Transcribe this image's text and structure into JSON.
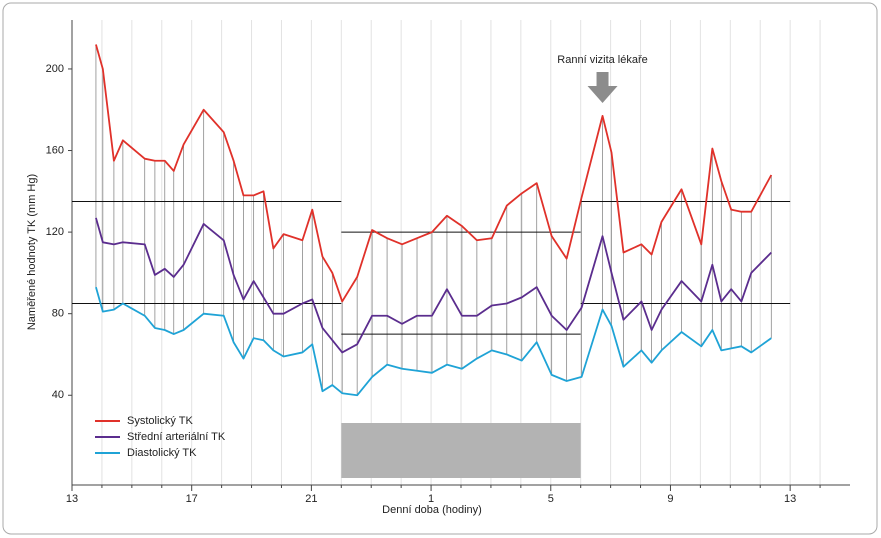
{
  "chart_data": {
    "type": "line",
    "xlabel": "Denní doba (hodiny)",
    "ylabel": "Naměřené hodnoty TK (mm Hg)",
    "x": [
      13.8,
      14.03,
      14.4,
      14.7,
      15.43,
      15.77,
      16.1,
      16.4,
      16.73,
      17.4,
      18.07,
      18.4,
      18.73,
      19.07,
      19.4,
      19.73,
      20.07,
      20.7,
      21.03,
      21.37,
      21.7,
      22.03,
      22.53,
      23.03,
      23.53,
      24.03,
      24.53,
      25.03,
      25.53,
      26.03,
      26.53,
      27.03,
      27.53,
      28.03,
      28.53,
      29.03,
      29.53,
      30.03,
      30.73,
      31.03,
      31.43,
      32.03,
      32.37,
      32.7,
      33.37,
      34.03,
      34.4,
      34.7,
      35.03,
      35.37,
      35.7,
      36.37
    ],
    "series": [
      {
        "name": "Systolický TK",
        "color": "#e0312a",
        "values": [
          212,
          200,
          155,
          165,
          156,
          155,
          155,
          150,
          163,
          180,
          169,
          155,
          138,
          138,
          140,
          112,
          119,
          116,
          131,
          108,
          100,
          86,
          98,
          121,
          117,
          114,
          117,
          120,
          128,
          123,
          116,
          117,
          133,
          139,
          144,
          118,
          107,
          137,
          177,
          159,
          110,
          114,
          109,
          125,
          141,
          114,
          161,
          145,
          131,
          130,
          130,
          148
        ]
      },
      {
        "name": "Střední arteriální TK",
        "color": "#5b2d8e",
        "values": [
          127,
          115,
          114,
          115,
          114,
          99,
          102,
          98,
          104,
          124,
          116,
          99,
          87,
          96,
          88,
          80,
          80,
          85,
          87,
          73,
          67,
          61,
          65,
          79,
          79,
          75,
          79,
          79,
          92,
          79,
          79,
          84,
          85,
          88,
          93,
          79,
          72,
          83,
          118,
          100,
          77,
          86,
          72,
          82,
          96,
          86,
          104,
          86,
          92,
          86,
          100,
          110
        ]
      },
      {
        "name": "Diastolický TK",
        "color": "#1fa3d6",
        "values": [
          93,
          81,
          82,
          85,
          79,
          73,
          72,
          70,
          72,
          80,
          79,
          66,
          58,
          68,
          67,
          62,
          59,
          61,
          65,
          42,
          45,
          41,
          40,
          49,
          55,
          53,
          52,
          51,
          55,
          53,
          58,
          62,
          60,
          57,
          66,
          50,
          47,
          49,
          82,
          74,
          54,
          62,
          56,
          62,
          71,
          64,
          72,
          62,
          63,
          64,
          61,
          68
        ]
      }
    ],
    "xlim": [
      13,
      39
    ],
    "xticks": [
      13,
      17,
      21,
      {
        "value": 25,
        "label": "1"
      },
      {
        "value": 29,
        "label": "5"
      },
      {
        "value": 33,
        "label": "9"
      },
      {
        "value": 37,
        "label": "13"
      }
    ],
    "xminorticks": [
      14,
      15,
      16,
      18,
      19,
      20,
      22,
      23,
      24,
      26,
      27,
      28,
      30,
      31,
      32,
      34,
      35,
      36,
      38
    ],
    "ylim": [
      -4,
      224
    ],
    "yticks": [
      40,
      80,
      120,
      160,
      200
    ],
    "grid": "x",
    "legend": "lower left",
    "thresholds": [
      {
        "x": [
          13,
          22
        ],
        "y": 135
      },
      {
        "x": [
          13,
          22
        ],
        "y": 85
      },
      {
        "x": [
          22,
          30
        ],
        "y": 120
      },
      {
        "x": [
          22,
          30
        ],
        "y": 70
      },
      {
        "x": [
          30,
          37
        ],
        "y": 135
      },
      {
        "x": [
          30,
          37
        ],
        "y": 85
      }
    ],
    "sleep_period": [
      22,
      30
    ],
    "annotation": {
      "text": "Ranní vizita lékaře",
      "x": 30.73
    }
  }
}
